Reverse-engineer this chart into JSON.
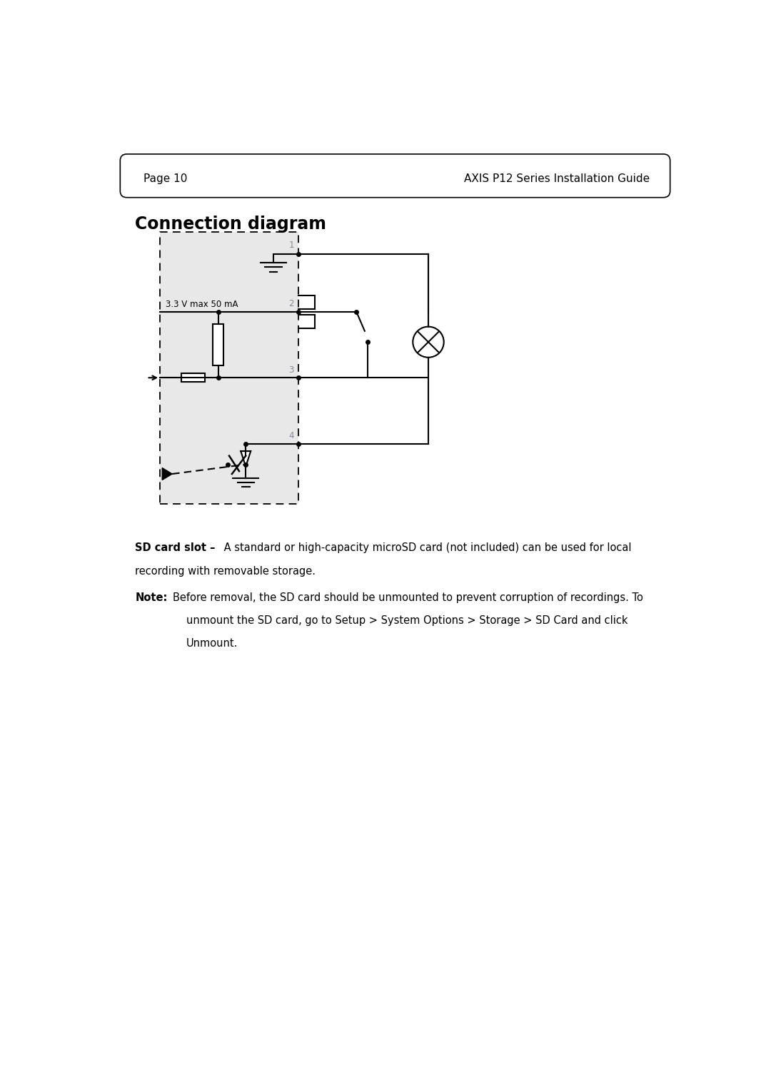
{
  "page_label": "Page 10",
  "guide_title": "AXIS P12 Series Installation Guide",
  "section_title": "Connection diagram",
  "bg_box_color": "#e8e8e8",
  "voltage_label": "3.3 V max 50 mA",
  "pin_labels": [
    "1",
    "2",
    "3",
    "4"
  ],
  "figsize": [
    10.8,
    15.23
  ],
  "dpi": 100
}
